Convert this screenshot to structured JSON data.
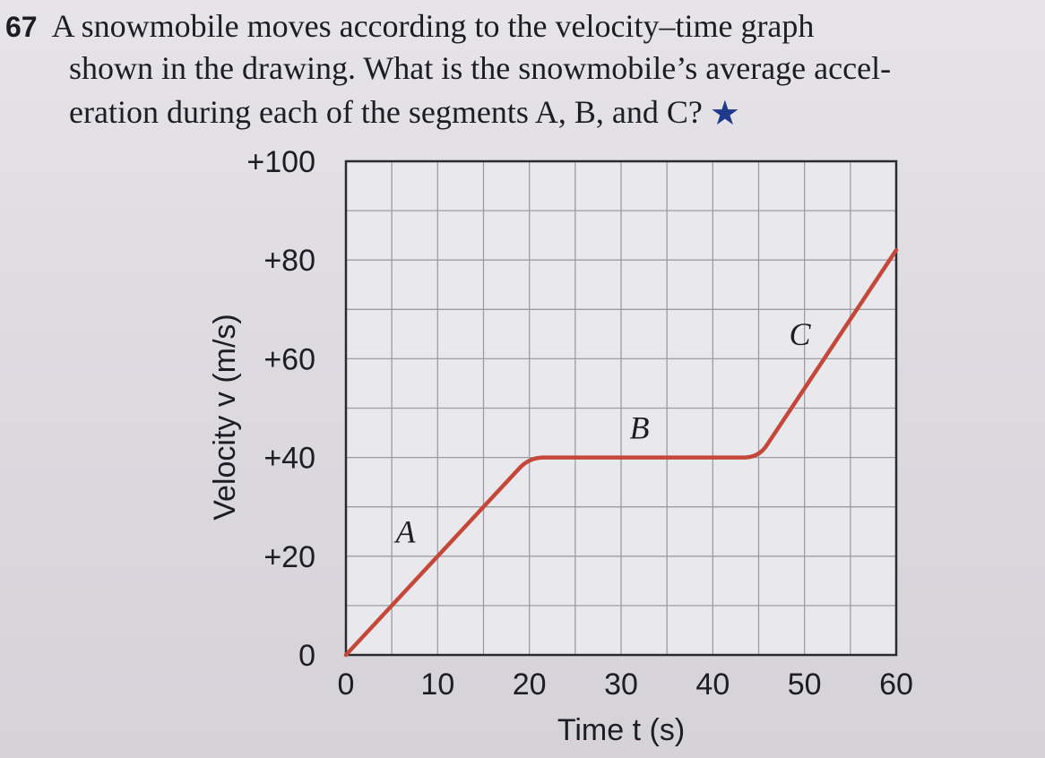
{
  "problem": {
    "number": "67",
    "line1": "A snowmobile moves according to the velocity–time graph",
    "line2": "shown in the drawing. What is the snowmobile’s average accel-",
    "line3": "eration during each of the segments A, B, and C?",
    "difficulty_icon": "star-icon",
    "difficulty_color": "#1f3a8a"
  },
  "chart_data": {
    "type": "line",
    "title": "",
    "xlabel": "Time t (s)",
    "ylabel": "Velocity v (m/s)",
    "xlim": [
      0,
      60
    ],
    "ylim": [
      0,
      100
    ],
    "x_ticks": [
      "0",
      "10",
      "20",
      "30",
      "40",
      "50",
      "60"
    ],
    "y_ticks": [
      "0",
      "+20",
      "+40",
      "+60",
      "+80",
      "+100"
    ],
    "grid": true,
    "line_color": "#c4483a",
    "points": [
      {
        "x": 0,
        "y": 0
      },
      {
        "x": 20,
        "y": 40
      },
      {
        "x": 45,
        "y": 40
      },
      {
        "x": 60,
        "y": 82
      }
    ],
    "segment_labels": [
      {
        "text": "A",
        "x": 6.5,
        "y": 25
      },
      {
        "text": "B",
        "x": 32,
        "y": 46
      },
      {
        "text": "C",
        "x": 49.5,
        "y": 65
      }
    ]
  }
}
